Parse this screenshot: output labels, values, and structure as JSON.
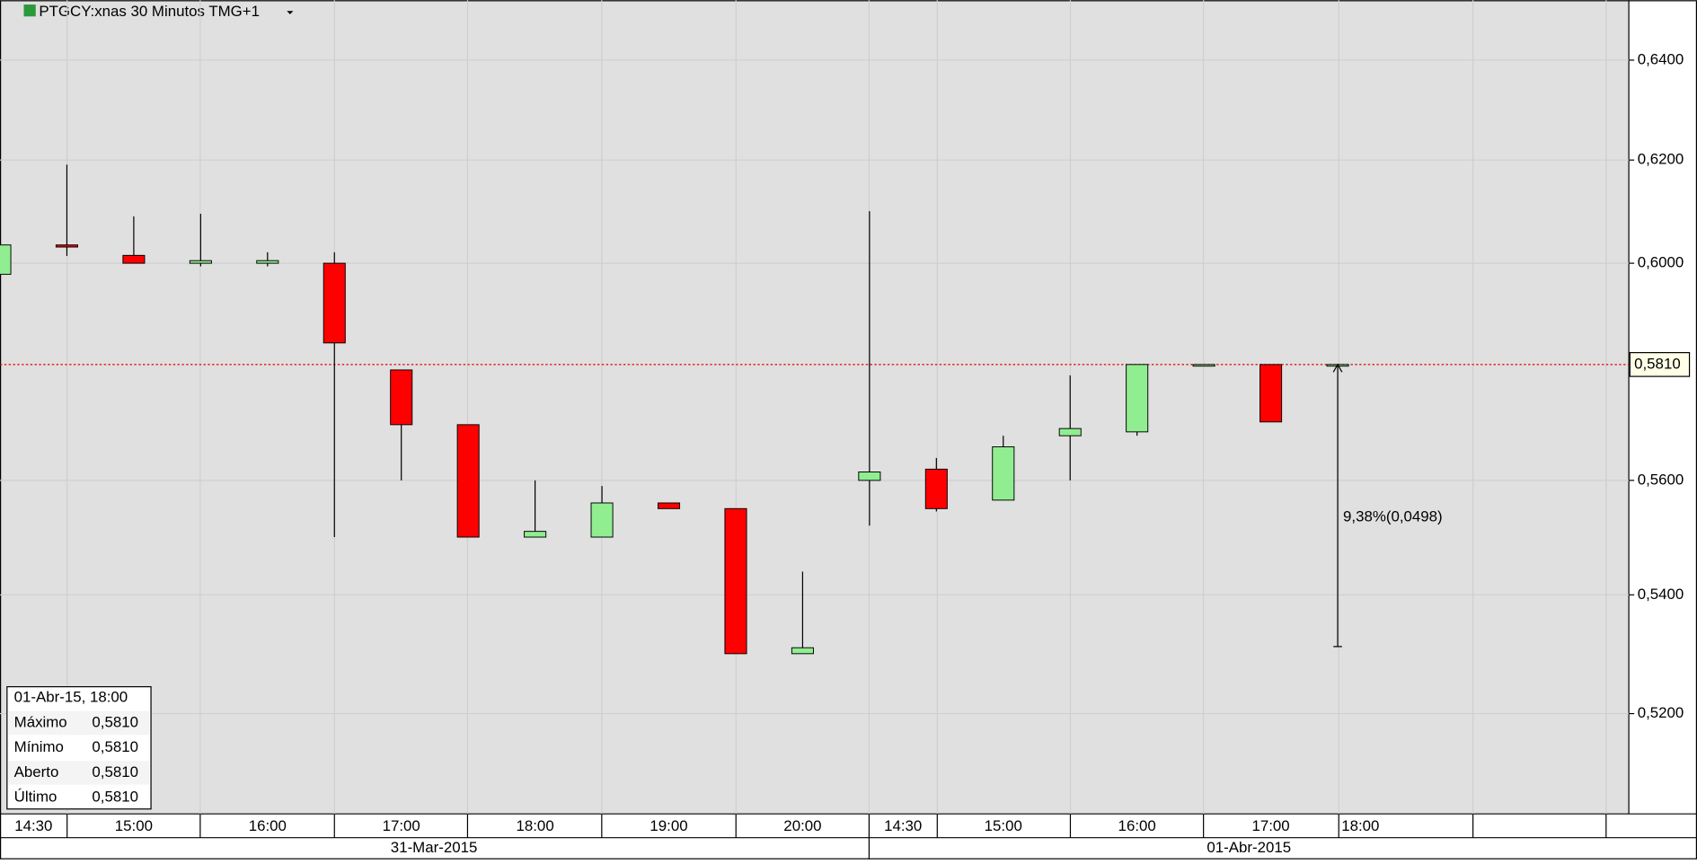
{
  "chart_data": {
    "type": "candlestick",
    "title": "PTGCY:xnas 30 Minutos TMG+1",
    "categories": [
      "14:30",
      null,
      "15:00",
      null,
      "16:00",
      null,
      "17:00",
      null,
      "18:00",
      null,
      "19:00",
      null,
      "20:00",
      "14:30",
      null,
      "15:00",
      null,
      "16:00",
      null,
      "17:00",
      "18:00"
    ],
    "open": [
      0.5979,
      0.6035,
      0.6015,
      0.6,
      0.6,
      0.6,
      0.58,
      0.57,
      0.55,
      0.55,
      0.556,
      0.555,
      0.53,
      0.56,
      0.562,
      0.5565,
      0.568,
      0.5687,
      0.581,
      0.581,
      0.581
    ],
    "high": [
      0.6035,
      0.6191,
      0.609,
      0.6095,
      0.6021,
      0.6021,
      0.58,
      0.57,
      0.56,
      0.559,
      0.556,
      0.555,
      0.544,
      0.61,
      0.564,
      0.568,
      0.579,
      0.581,
      0.581,
      0.581,
      0.581
    ],
    "low": [
      0.5979,
      0.6014,
      0.6,
      0.5994,
      0.5994,
      0.55,
      0.56,
      0.55,
      0.55,
      0.55,
      0.555,
      0.53,
      0.53,
      0.552,
      0.5545,
      0.5565,
      0.56,
      0.568,
      0.581,
      0.5705,
      0.581
    ],
    "close": [
      0.6035,
      0.6031,
      0.6,
      0.6005,
      0.6005,
      0.585,
      0.57,
      0.55,
      0.551,
      0.556,
      0.555,
      0.53,
      0.531,
      0.5615,
      0.555,
      0.566,
      0.5693,
      0.581,
      0.581,
      0.5705,
      0.581
    ],
    "up_color": "#90ee90",
    "down_color": "#ff0000",
    "dates": [
      "31-Mar-2015",
      "01-Abr-2015"
    ],
    "ylim": [
      0.5037,
      0.6523
    ],
    "log_scale": true,
    "grid": true,
    "yticks": [
      {
        "value": 0.52,
        "label": "0,5200"
      },
      {
        "value": 0.54,
        "label": "0,5400"
      },
      {
        "value": 0.56,
        "label": "0,5600"
      },
      {
        "value": 0.6,
        "label": "0,6000"
      },
      {
        "value": 0.62,
        "label": "0,6200"
      },
      {
        "value": 0.64,
        "label": "0,6400"
      }
    ],
    "last_price": {
      "value": 0.581,
      "label": "0,5810"
    },
    "measure": {
      "from": 0.5312,
      "to": 0.581,
      "label": "9,38%(0,0498)"
    },
    "info_box": {
      "title": "01-Abr-15, 18:00",
      "rows": [
        [
          "Máximo",
          "0,5810"
        ],
        [
          "Mínimo",
          "0,5810"
        ],
        [
          "Aberto",
          "0,5810"
        ],
        [
          "Último",
          "0,5810"
        ]
      ]
    }
  }
}
